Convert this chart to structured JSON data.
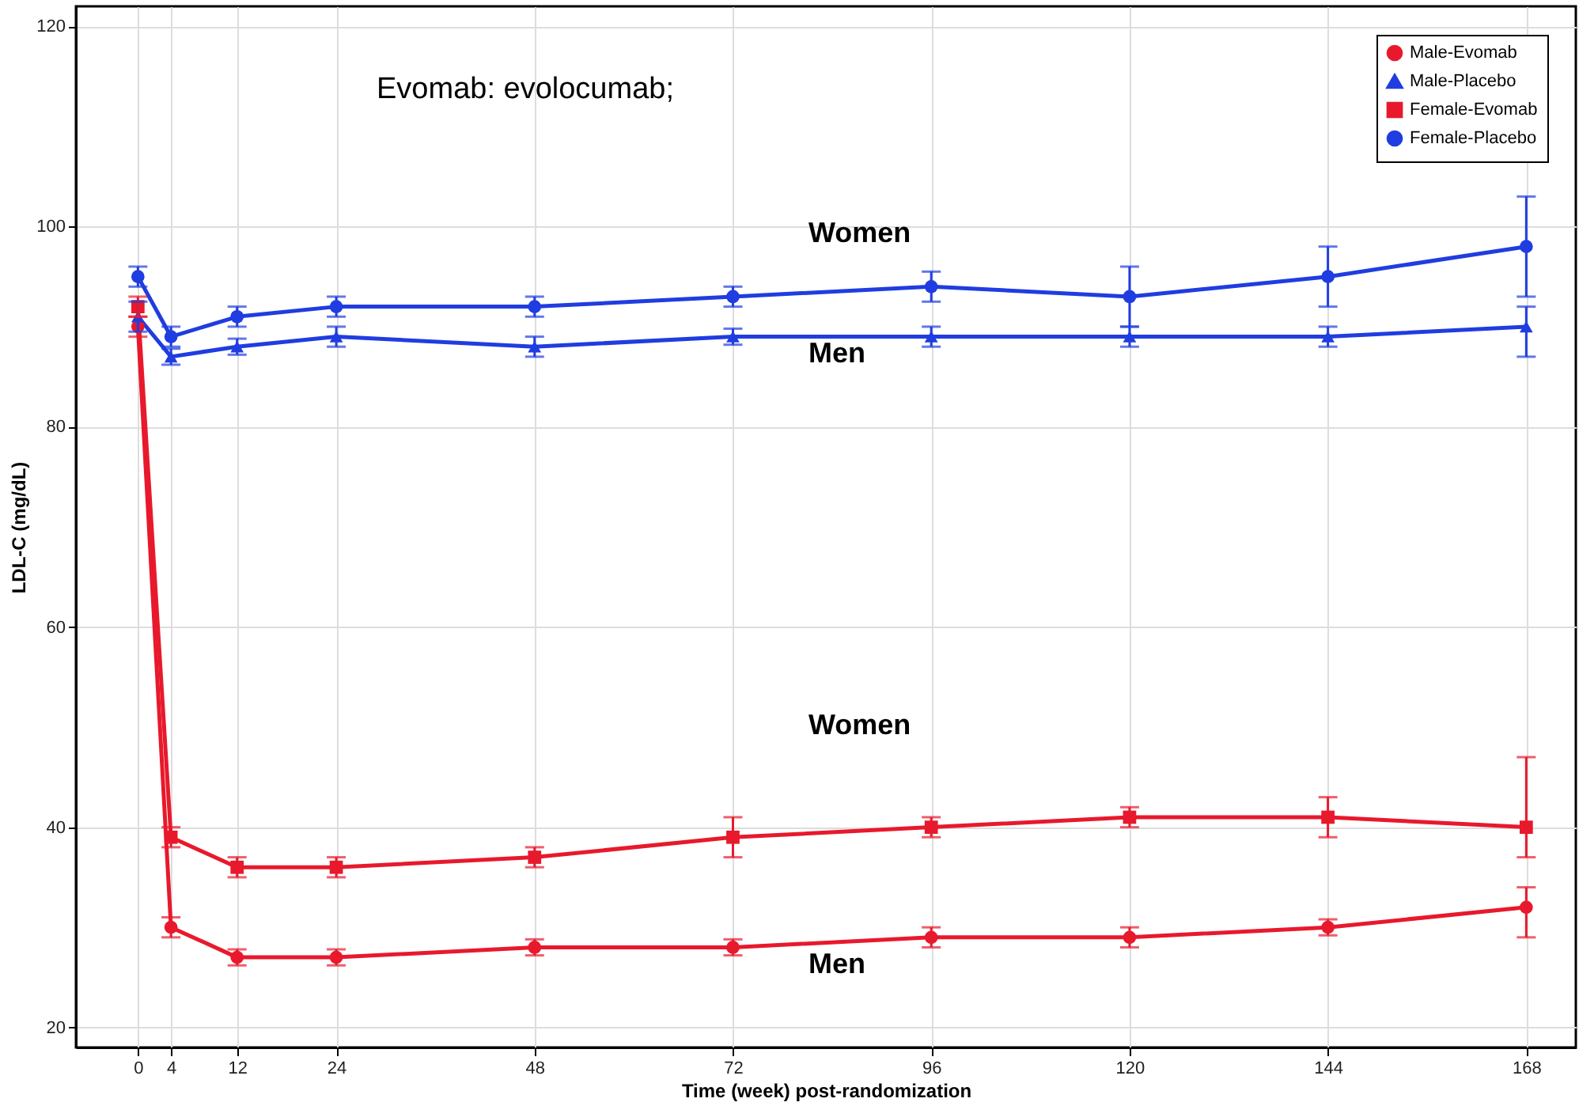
{
  "chart_data": {
    "type": "line",
    "xlabel": "Time (week) post-randomization",
    "ylabel": "LDL-C (mg/dL)",
    "x": [
      0,
      4,
      12,
      24,
      48,
      72,
      96,
      120,
      144,
      168
    ],
    "series": [
      {
        "name": "Male-Evomab",
        "color": "#e8192c",
        "marker": "circle",
        "values": [
          90,
          30,
          27,
          27,
          28,
          28,
          29,
          29,
          30,
          32
        ],
        "errors": [
          1,
          1,
          0.8,
          0.8,
          0.8,
          0.8,
          1,
          1,
          0.8,
          [
            29,
            34
          ]
        ]
      },
      {
        "name": "Male-Placebo",
        "color": "#1f3de0",
        "marker": "triangle",
        "values": [
          91,
          87,
          88,
          89,
          88,
          89,
          89,
          89,
          89,
          90
        ],
        "errors": [
          1.5,
          0.8,
          0.8,
          1,
          1,
          0.8,
          1,
          1,
          1,
          [
            87,
            92
          ]
        ]
      },
      {
        "name": "Female-Evomab",
        "color": "#e8192c",
        "marker": "square",
        "values": [
          92,
          39,
          36,
          36,
          37,
          39,
          40,
          41,
          41,
          40
        ],
        "errors": [
          1,
          1,
          1,
          1,
          1,
          2,
          1,
          1,
          2,
          [
            37,
            47
          ]
        ]
      },
      {
        "name": "Female-Placebo",
        "color": "#1f3de0",
        "marker": "circle",
        "values": [
          95,
          89,
          91,
          92,
          92,
          93,
          94,
          93,
          95,
          98
        ],
        "errors": [
          1,
          1,
          1,
          1,
          1,
          1,
          1.5,
          3,
          3,
          5
        ]
      }
    ],
    "xlim": [
      -7.5,
      174
    ],
    "xticks": [
      0,
      4,
      12,
      24,
      48,
      72,
      96,
      120,
      144,
      168
    ],
    "ylim": [
      18,
      122
    ],
    "yticks": [
      20,
      40,
      60,
      80,
      100,
      120
    ],
    "grid": true,
    "legend": "top right",
    "annotations": [
      "Evomab: evolocumab;",
      "Women",
      "Men",
      "Women",
      "Men"
    ]
  }
}
